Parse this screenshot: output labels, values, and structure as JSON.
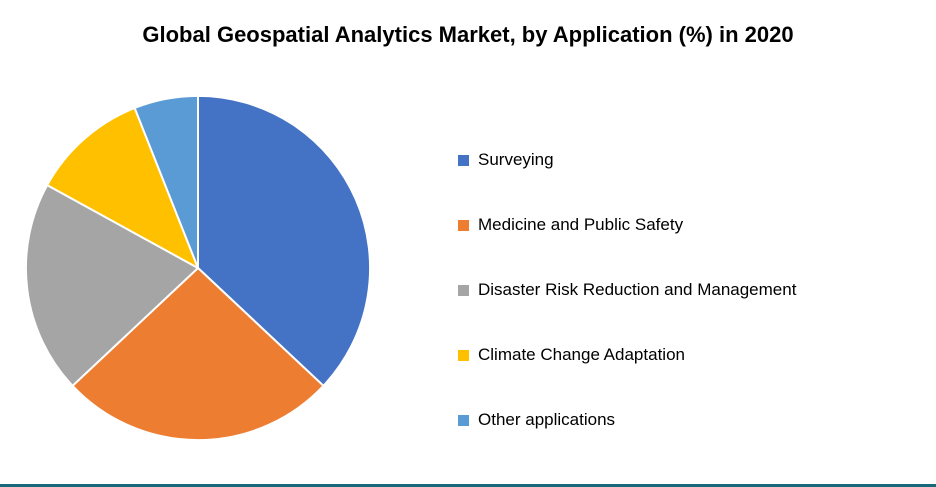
{
  "chart_data": {
    "type": "pie",
    "title": "Global Geospatial Analytics Market, by Application (%) in 2020",
    "categories": [
      "Surveying",
      "Medicine and Public Safety",
      "Disaster Risk Reduction and Management",
      "Climate Change Adaptation",
      "Other applications"
    ],
    "values": [
      37,
      26,
      20,
      11,
      6
    ],
    "colors": [
      "#4472C4",
      "#ED7D31",
      "#A5A5A5",
      "#FFC000",
      "#5B9BD5"
    ],
    "legend_position": "right",
    "start_angle_deg": -90,
    "direction": "clockwise",
    "slice_border_color": "#ffffff"
  },
  "footer": {
    "accent_color": "#16697a"
  }
}
